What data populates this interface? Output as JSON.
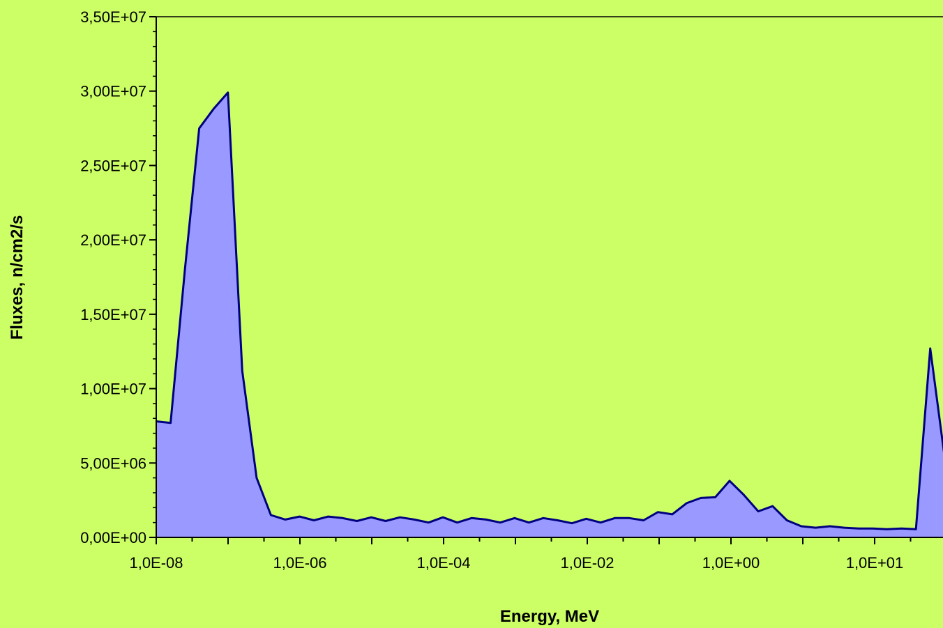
{
  "chart_data": {
    "type": "area",
    "title": "",
    "xlabel": "Energy, MeV",
    "ylabel": "Fluxes, n/cm2/s",
    "x_scale": "log",
    "ylim": [
      0,
      35000000
    ],
    "y_ticks": [
      "0,00E+00",
      "5,00E+06",
      "1,00E+07",
      "1,50E+07",
      "2,00E+07",
      "2,50E+07",
      "3,00E+07",
      "3,50E+07"
    ],
    "y_tick_values": [
      0,
      5000000,
      10000000,
      15000000,
      20000000,
      25000000,
      30000000,
      35000000
    ],
    "x_ticks": [
      "1,0E-08",
      "1,0E-06",
      "1,0E-04",
      "1,0E-02",
      "1,0E+00",
      "1,0E+01"
    ],
    "grid": false,
    "legend": "none",
    "colors": {
      "background": "#ccff66",
      "fill": "#9999ff",
      "line": "#000080"
    },
    "series": [
      {
        "values": [
          7800000,
          7700000,
          18000000,
          27500000,
          28800000,
          29900000,
          11200000,
          4000000,
          1500000,
          1200000,
          1400000,
          1150000,
          1400000,
          1300000,
          1100000,
          1350000,
          1100000,
          1350000,
          1200000,
          1000000,
          1350000,
          1000000,
          1300000,
          1200000,
          1000000,
          1300000,
          1000000,
          1300000,
          1150000,
          950000,
          1250000,
          1000000,
          1300000,
          1300000,
          1150000,
          1700000,
          1550000,
          2300000,
          2650000,
          2700000,
          3800000,
          2850000,
          1750000,
          2100000,
          1150000,
          750000,
          650000,
          750000,
          650000,
          600000,
          600000,
          550000,
          600000,
          550000,
          12700000,
          5400000
        ]
      }
    ]
  }
}
